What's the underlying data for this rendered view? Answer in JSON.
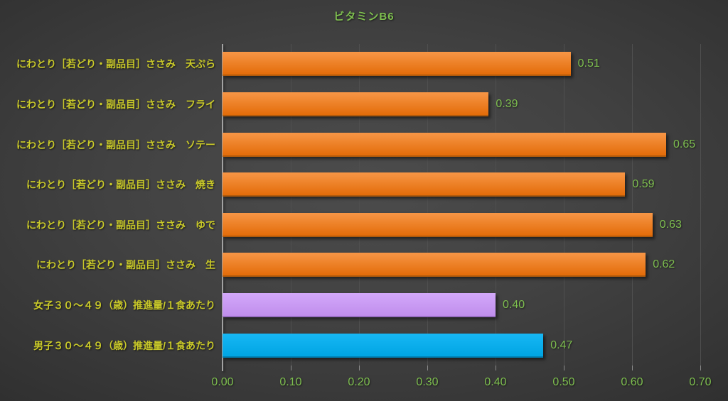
{
  "colors": {
    "title": "#7ebf4f",
    "value": "#7ebf4f",
    "category": "#c9c929",
    "grid": "#4f4f4f",
    "axis": "#a2a2a2",
    "bg_center": "#4c4c4c",
    "bg_edge": "#1d1d1d",
    "orange": "#ED7D31",
    "purple": "#C99CF2",
    "blue": "#00B0F0"
  },
  "chart_data": {
    "type": "bar",
    "orientation": "horizontal",
    "title": "ビタミンB6",
    "xlabel": "",
    "ylabel": "",
    "xlim": [
      0,
      0.7
    ],
    "grid": true,
    "x_ticks": [
      "0.00",
      "0.10",
      "0.20",
      "0.30",
      "0.40",
      "0.50",
      "0.60",
      "0.70"
    ],
    "bars": [
      {
        "category": "にわとり［若どり・副品目］ささみ　天ぷら",
        "value": 0.51,
        "label": "0.51",
        "color_top": "#F79646",
        "color_bottom": "#E36C09",
        "color_edge": "#b05a0c"
      },
      {
        "category": "にわとり［若どり・副品目］ささみ　フライ",
        "value": 0.39,
        "label": "0.39",
        "color_top": "#F79646",
        "color_bottom": "#E36C09",
        "color_edge": "#b05a0c"
      },
      {
        "category": "にわとり［若どり・副品目］ささみ　ソテー",
        "value": 0.65,
        "label": "0.65",
        "color_top": "#F79646",
        "color_bottom": "#E36C09",
        "color_edge": "#b05a0c"
      },
      {
        "category": "にわとり［若どり・副品目］ささみ　焼き",
        "value": 0.59,
        "label": "0.59",
        "color_top": "#F79646",
        "color_bottom": "#E36C09",
        "color_edge": "#b05a0c"
      },
      {
        "category": "にわとり［若どり・副品目］ささみ　ゆで",
        "value": 0.63,
        "label": "0.63",
        "color_top": "#F79646",
        "color_bottom": "#E36C09",
        "color_edge": "#b05a0c"
      },
      {
        "category": "にわとり［若どり・副品目］ささみ　生",
        "value": 0.62,
        "label": "0.62",
        "color_top": "#F79646",
        "color_bottom": "#E36C09",
        "color_edge": "#b05a0c"
      },
      {
        "category": "女子３０～４９（歳）推進量/１食あたり",
        "value": 0.4,
        "label": "0.40",
        "color_top": "#D3A8FA",
        "color_bottom": "#C08EEC",
        "color_edge": "#9a6fc4"
      },
      {
        "category": "男子３０～４９（歳）推進量/１食あたり",
        "value": 0.47,
        "label": "0.47",
        "color_top": "#17B7F4",
        "color_bottom": "#00A5E3",
        "color_edge": "#0081b3"
      }
    ]
  }
}
